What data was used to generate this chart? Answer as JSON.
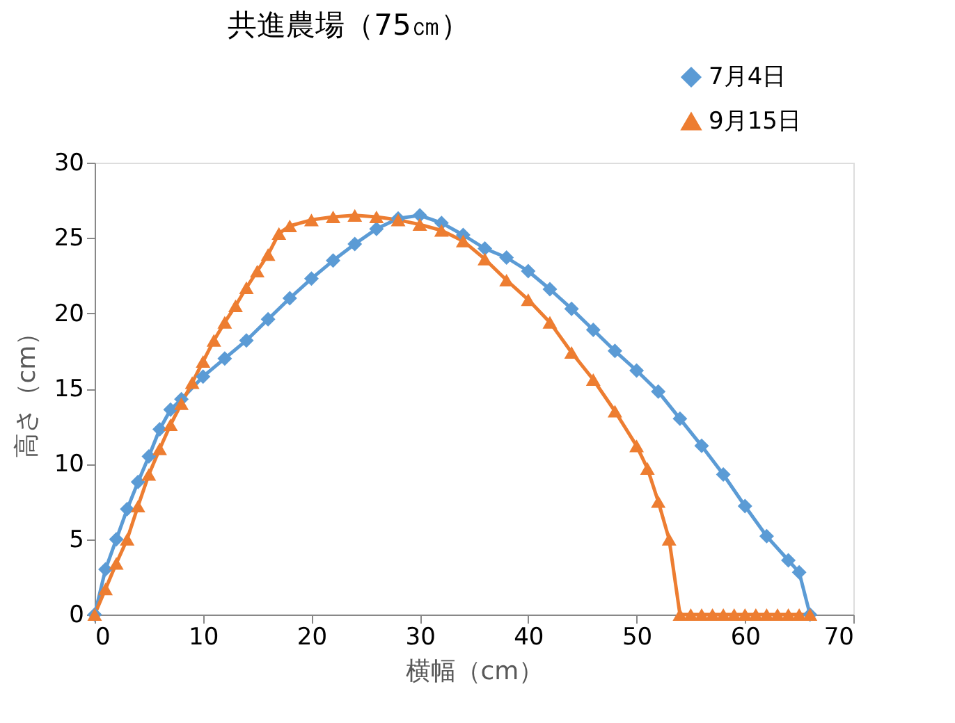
{
  "chart_data": {
    "type": "line",
    "title": "共進農場（75㎝）",
    "xlabel": "横幅（cm）",
    "ylabel": "高さ（cm）",
    "xlim": [
      0,
      70
    ],
    "xticks": [
      0,
      10,
      20,
      30,
      40,
      50,
      60,
      70
    ],
    "ylim": [
      0,
      30
    ],
    "yticks": [
      0,
      5,
      10,
      15,
      20,
      25,
      30
    ],
    "grid": false,
    "legend": "top right",
    "line_style": "solid",
    "series": [
      {
        "name": "7月4日",
        "color": "#5b9bd5",
        "marker": "diamond",
        "x": [
          0,
          1,
          2,
          3,
          4,
          5,
          6,
          7,
          8,
          10,
          12,
          14,
          16,
          18,
          20,
          22,
          24,
          26,
          28,
          30,
          32,
          34,
          36,
          38,
          40,
          42,
          44,
          46,
          48,
          50,
          52,
          54,
          56,
          58,
          60,
          62,
          64,
          65,
          66
        ],
        "values": [
          0,
          3,
          5,
          7,
          8.8,
          10.5,
          12.3,
          13.6,
          14.3,
          15.8,
          17,
          18.2,
          19.6,
          21,
          22.3,
          23.5,
          24.6,
          25.6,
          26.3,
          26.5,
          26,
          25.2,
          24.3,
          23.7,
          22.8,
          21.6,
          20.3,
          18.9,
          17.5,
          16.2,
          14.8,
          13,
          11.2,
          9.3,
          7.2,
          5.2,
          3.6,
          2.8,
          0
        ]
      },
      {
        "name": "9月15日",
        "color": "#ed7d31",
        "marker": "triangle",
        "x": [
          0,
          1,
          2,
          3,
          4,
          5,
          6,
          7,
          8,
          9,
          10,
          11,
          12,
          13,
          14,
          15,
          16,
          17,
          18,
          20,
          22,
          24,
          26,
          28,
          30,
          32,
          34,
          36,
          38,
          40,
          42,
          44,
          46,
          48,
          50,
          51,
          52,
          53,
          54,
          55,
          56,
          57,
          58,
          59,
          60,
          61,
          62,
          63,
          64,
          65,
          66
        ],
        "values": [
          0,
          1.7,
          3.4,
          5,
          7.2,
          9.3,
          11,
          12.6,
          14,
          15.4,
          16.8,
          18.2,
          19.4,
          20.5,
          21.7,
          22.8,
          23.9,
          25.3,
          25.8,
          26.2,
          26.4,
          26.5,
          26.4,
          26.2,
          25.9,
          25.5,
          24.8,
          23.6,
          22.2,
          20.9,
          19.4,
          17.4,
          15.6,
          13.5,
          11.2,
          9.7,
          7.5,
          5,
          0,
          0,
          0,
          0,
          0,
          0,
          0,
          0,
          0,
          0,
          0,
          0,
          0
        ]
      }
    ]
  }
}
